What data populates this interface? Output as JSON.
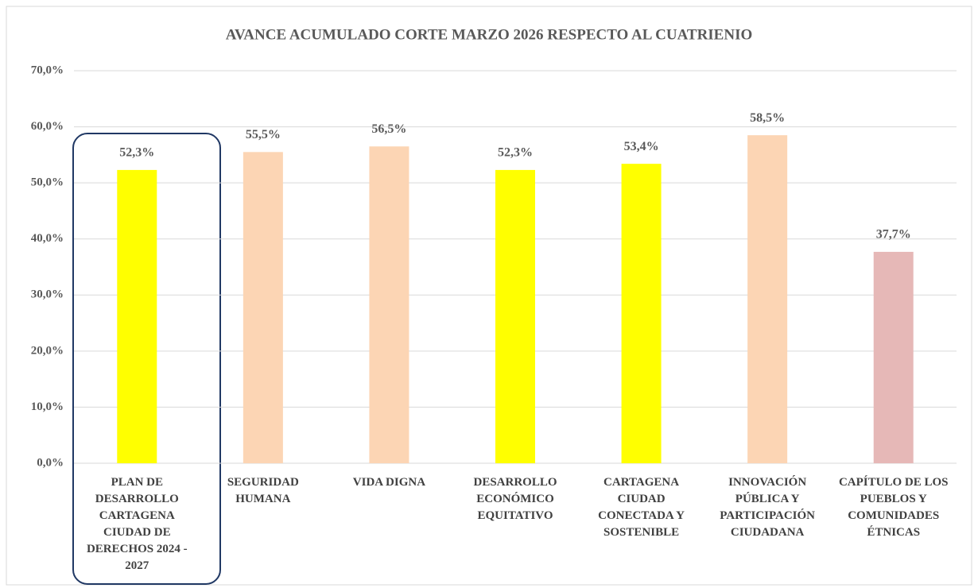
{
  "chart_data": {
    "type": "bar",
    "title": "AVANCE ACUMULADO  CORTE  MARZO 2026 RESPECTO AL CUATRIENIO",
    "categories": [
      "PLAN DE DESARROLLO CARTAGENA CIUDAD DE DERECHOS 2024 - 2027",
      "SEGURIDAD HUMANA",
      "VIDA DIGNA",
      "DESARROLLO ECONÓMICO EQUITATIVO",
      "CARTAGENA CIUDAD CONECTADA Y SOSTENIBLE",
      "INNOVACIÓN PÚBLICA Y PARTICIPACIÓN CIUDADANA",
      "CAPÍTULO DE LOS PUEBLOS Y COMUNIDADES ÉTNICAS"
    ],
    "values": [
      52.3,
      55.5,
      56.5,
      52.3,
      53.4,
      58.5,
      37.7
    ],
    "value_labels": [
      "52,3%",
      "55,5%",
      "56,5%",
      "52,3%",
      "53,4%",
      "58,5%",
      "37,7%"
    ],
    "colors": [
      "#ffff00",
      "#fcd5b4",
      "#fcd5b4",
      "#ffff00",
      "#ffff00",
      "#fcd5b4",
      "#e6b8b7"
    ],
    "ylim": [
      0,
      70
    ],
    "yticks": [
      {
        "value": 0,
        "label": "0,0%"
      },
      {
        "value": 10,
        "label": "10,0%"
      },
      {
        "value": 20,
        "label": "20,0%"
      },
      {
        "value": 30,
        "label": "30,0%"
      },
      {
        "value": 40,
        "label": "40,0%"
      },
      {
        "value": 50,
        "label": "50,0%"
      },
      {
        "value": 60,
        "label": "60,0%"
      },
      {
        "value": 70,
        "label": "70,0%"
      }
    ],
    "grid": true
  }
}
